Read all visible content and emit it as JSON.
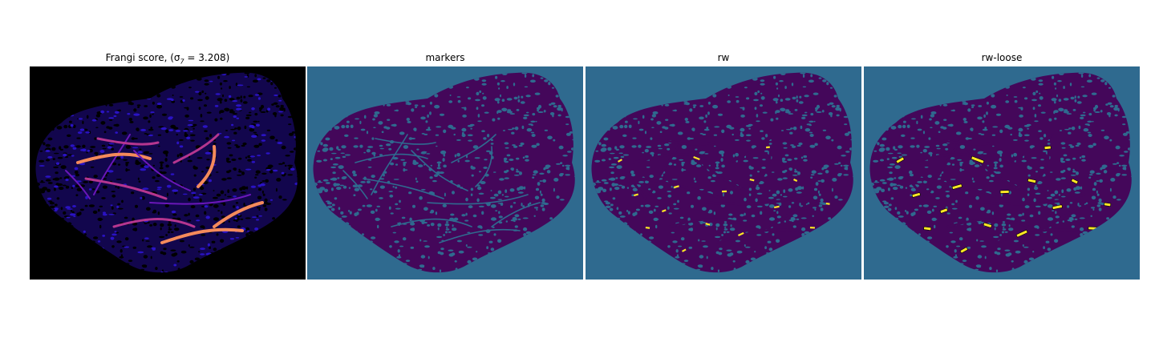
{
  "figure": {
    "panels": [
      {
        "id": "frangi",
        "title": "Frangi score, (σ",
        "title_sub": "7",
        "title_tail": " = 3.208)",
        "background": "#000000",
        "blob_color": "#1a0b9e",
        "vessel_colors": [
          "#6a17b8",
          "#b5368f",
          "#f48a5b"
        ]
      },
      {
        "id": "markers",
        "title": "markers",
        "background": "#2f6a8f",
        "blob_color": "#44075a",
        "vessel_colors": [
          "#2f6a8f"
        ]
      },
      {
        "id": "rw",
        "title": "rw",
        "background": "#2f6a8f",
        "blob_color": "#44075a",
        "vessel_colors": [
          "#fde725"
        ]
      },
      {
        "id": "rw-loose",
        "title": "rw-loose",
        "background": "#2f6a8f",
        "blob_color": "#44075a",
        "vessel_colors": [
          "#fde725"
        ]
      }
    ]
  }
}
